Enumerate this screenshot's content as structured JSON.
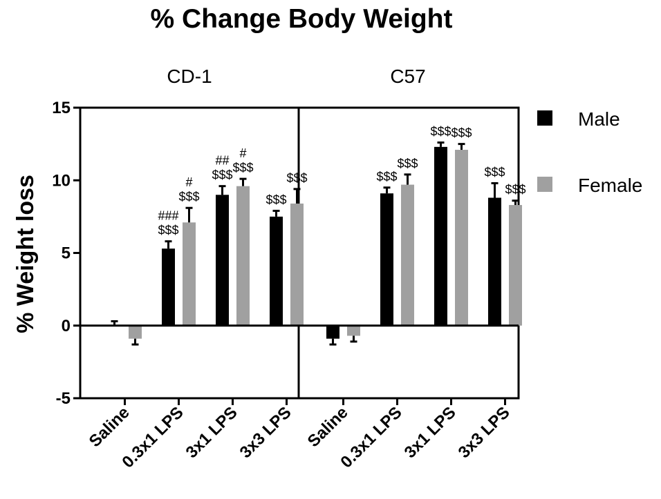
{
  "chart_data": {
    "type": "bar",
    "title": "% Change Body Weight",
    "ylabel": "% Weight loss",
    "ylim": [
      -5,
      15
    ],
    "yticks": [
      -5,
      0,
      5,
      10,
      15
    ],
    "grid": false,
    "legend_position": "right",
    "categories": [
      "Saline",
      "0.3x1 LPS",
      "3x1 LPS",
      "3x3 LPS"
    ],
    "series_colors": {
      "Male": "#000000",
      "Female": "#a0a0a0"
    },
    "panels": [
      {
        "label": "CD-1",
        "series": [
          {
            "name": "Male",
            "values": [
              0.0,
              5.3,
              9.0,
              7.5
            ],
            "errors": [
              0.3,
              0.5,
              0.6,
              0.4
            ]
          },
          {
            "name": "Female",
            "values": [
              -0.9,
              7.1,
              9.6,
              8.4
            ],
            "errors": [
              0.4,
              1.0,
              0.5,
              1.0
            ]
          }
        ],
        "annotations": [
          {
            "category": 1,
            "series": 0,
            "lines": [
              "###",
              "$$$"
            ]
          },
          {
            "category": 1,
            "series": 1,
            "lines": [
              "#",
              "$$$"
            ]
          },
          {
            "category": 2,
            "series": 0,
            "lines": [
              "##",
              "$$$"
            ]
          },
          {
            "category": 2,
            "series": 1,
            "lines": [
              "#",
              "$$$"
            ]
          },
          {
            "category": 3,
            "series": 0,
            "lines": [
              "$$$"
            ]
          },
          {
            "category": 3,
            "series": 1,
            "lines": [
              "$$$"
            ]
          }
        ]
      },
      {
        "label": "C57",
        "series": [
          {
            "name": "Male",
            "values": [
              -0.9,
              9.1,
              12.3,
              8.8
            ],
            "errors": [
              0.4,
              0.4,
              0.3,
              1.0
            ]
          },
          {
            "name": "Female",
            "values": [
              -0.7,
              9.7,
              12.1,
              8.3
            ],
            "errors": [
              0.4,
              0.7,
              0.4,
              0.3
            ]
          }
        ],
        "annotations": [
          {
            "category": 1,
            "series": 0,
            "lines": [
              "$$$"
            ]
          },
          {
            "category": 1,
            "series": 1,
            "lines": [
              "$$$"
            ]
          },
          {
            "category": 2,
            "series": 0,
            "lines": [
              "$$$"
            ]
          },
          {
            "category": 2,
            "series": 1,
            "lines": [
              "$$$"
            ]
          },
          {
            "category": 3,
            "series": 0,
            "lines": [
              "$$$"
            ]
          },
          {
            "category": 3,
            "series": 1,
            "lines": [
              "$$$"
            ]
          }
        ]
      }
    ]
  }
}
